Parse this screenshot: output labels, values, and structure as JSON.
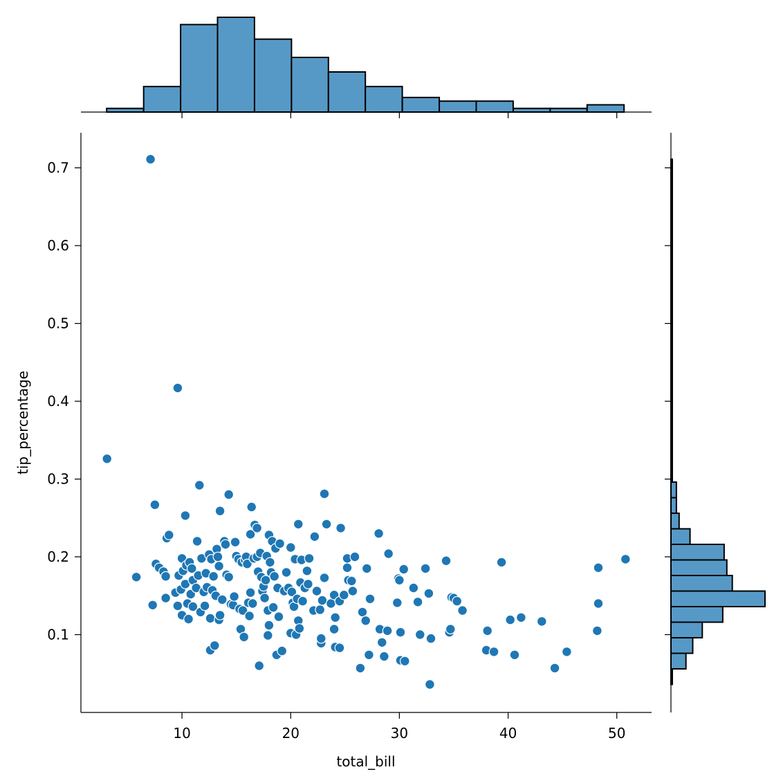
{
  "chart_data": {
    "type": "scatter",
    "title": "",
    "xlabel": "total_bill",
    "ylabel": "tip_percentage",
    "xlim": [
      0.7,
      53.2
    ],
    "ylim": [
      0.0,
      0.745
    ],
    "xticks": [
      10,
      20,
      30,
      40,
      50
    ],
    "xtick_labels": [
      "10",
      "20",
      "30",
      "40",
      "50"
    ],
    "yticks": [
      0.1,
      0.2,
      0.3,
      0.4,
      0.5,
      0.6,
      0.7
    ],
    "ytick_labels": [
      "0.1",
      "0.2",
      "0.3",
      "0.4",
      "0.5",
      "0.6",
      "0.7"
    ],
    "grid": false,
    "legend": "none",
    "colors": {
      "points": "#1f77b4",
      "bars": "#5799c6",
      "edge": "#000000"
    },
    "points": [
      [
        3.1,
        0.326
      ],
      [
        5.8,
        0.174
      ],
      [
        7.1,
        0.711
      ],
      [
        7.3,
        0.138
      ],
      [
        7.5,
        0.267
      ],
      [
        7.6,
        0.191
      ],
      [
        7.9,
        0.186
      ],
      [
        8.3,
        0.181
      ],
      [
        8.5,
        0.175
      ],
      [
        8.5,
        0.147
      ],
      [
        8.6,
        0.224
      ],
      [
        8.8,
        0.228
      ],
      [
        9.6,
        0.417
      ],
      [
        9.4,
        0.154
      ],
      [
        9.6,
        0.137
      ],
      [
        9.7,
        0.176
      ],
      [
        9.9,
        0.158
      ],
      [
        10.0,
        0.198
      ],
      [
        10.0,
        0.125
      ],
      [
        10.1,
        0.182
      ],
      [
        10.3,
        0.253
      ],
      [
        10.3,
        0.165
      ],
      [
        10.4,
        0.189
      ],
      [
        10.5,
        0.14
      ],
      [
        10.6,
        0.12
      ],
      [
        10.7,
        0.193
      ],
      [
        10.8,
        0.152
      ],
      [
        10.9,
        0.185
      ],
      [
        11.0,
        0.17
      ],
      [
        11.0,
        0.136
      ],
      [
        11.3,
        0.16
      ],
      [
        11.4,
        0.22
      ],
      [
        11.5,
        0.176
      ],
      [
        11.6,
        0.292
      ],
      [
        11.7,
        0.129
      ],
      [
        11.8,
        0.198
      ],
      [
        12.0,
        0.155
      ],
      [
        12.1,
        0.137
      ],
      [
        12.2,
        0.179
      ],
      [
        12.3,
        0.161
      ],
      [
        12.5,
        0.203
      ],
      [
        12.6,
        0.121
      ],
      [
        12.6,
        0.08
      ],
      [
        12.7,
        0.197
      ],
      [
        12.8,
        0.157
      ],
      [
        12.9,
        0.175
      ],
      [
        13.0,
        0.086
      ],
      [
        13.1,
        0.15
      ],
      [
        13.2,
        0.21
      ],
      [
        13.3,
        0.2
      ],
      [
        13.4,
        0.188
      ],
      [
        13.4,
        0.119
      ],
      [
        13.5,
        0.259
      ],
      [
        13.5,
        0.125
      ],
      [
        13.7,
        0.145
      ],
      [
        13.9,
        0.22
      ],
      [
        14.0,
        0.216
      ],
      [
        14.1,
        0.177
      ],
      [
        14.3,
        0.28
      ],
      [
        14.3,
        0.174
      ],
      [
        14.5,
        0.139
      ],
      [
        14.7,
        0.138
      ],
      [
        14.8,
        0.149
      ],
      [
        14.9,
        0.219
      ],
      [
        15.0,
        0.201
      ],
      [
        15.2,
        0.197
      ],
      [
        15.3,
        0.133
      ],
      [
        15.4,
        0.107
      ],
      [
        15.5,
        0.193
      ],
      [
        15.6,
        0.131
      ],
      [
        15.7,
        0.097
      ],
      [
        15.8,
        0.196
      ],
      [
        15.9,
        0.2
      ],
      [
        16.0,
        0.191
      ],
      [
        16.1,
        0.141
      ],
      [
        16.2,
        0.124
      ],
      [
        16.3,
        0.154
      ],
      [
        16.3,
        0.229
      ],
      [
        16.4,
        0.264
      ],
      [
        16.5,
        0.14
      ],
      [
        16.6,
        0.198
      ],
      [
        16.7,
        0.241
      ],
      [
        16.9,
        0.237
      ],
      [
        16.9,
        0.2
      ],
      [
        17.0,
        0.181
      ],
      [
        17.1,
        0.06
      ],
      [
        17.2,
        0.205
      ],
      [
        17.3,
        0.174
      ],
      [
        17.4,
        0.156
      ],
      [
        17.5,
        0.162
      ],
      [
        17.6,
        0.147
      ],
      [
        17.7,
        0.17
      ],
      [
        17.8,
        0.201
      ],
      [
        17.9,
        0.131
      ],
      [
        17.9,
        0.099
      ],
      [
        18.0,
        0.228
      ],
      [
        18.0,
        0.112
      ],
      [
        18.1,
        0.193
      ],
      [
        18.2,
        0.18
      ],
      [
        18.3,
        0.22
      ],
      [
        18.4,
        0.135
      ],
      [
        18.5,
        0.175
      ],
      [
        18.6,
        0.211
      ],
      [
        18.7,
        0.074
      ],
      [
        18.8,
        0.16
      ],
      [
        18.9,
        0.123
      ],
      [
        19.0,
        0.217
      ],
      [
        19.2,
        0.079
      ],
      [
        19.4,
        0.156
      ],
      [
        19.6,
        0.18
      ],
      [
        19.8,
        0.16
      ],
      [
        20.0,
        0.102
      ],
      [
        20.0,
        0.212
      ],
      [
        20.1,
        0.155
      ],
      [
        20.2,
        0.141
      ],
      [
        20.3,
        0.136
      ],
      [
        20.4,
        0.197
      ],
      [
        20.5,
        0.1
      ],
      [
        20.6,
        0.146
      ],
      [
        20.7,
        0.242
      ],
      [
        20.7,
        0.118
      ],
      [
        20.8,
        0.108
      ],
      [
        20.9,
        0.167
      ],
      [
        21.0,
        0.196
      ],
      [
        21.1,
        0.143
      ],
      [
        21.3,
        0.16
      ],
      [
        21.5,
        0.182
      ],
      [
        21.6,
        0.165
      ],
      [
        21.7,
        0.198
      ],
      [
        22.1,
        0.131
      ],
      [
        22.2,
        0.226
      ],
      [
        22.4,
        0.156
      ],
      [
        22.7,
        0.132
      ],
      [
        22.8,
        0.089
      ],
      [
        22.8,
        0.095
      ],
      [
        22.9,
        0.144
      ],
      [
        23.1,
        0.173
      ],
      [
        23.1,
        0.281
      ],
      [
        23.3,
        0.242
      ],
      [
        23.7,
        0.14
      ],
      [
        24.0,
        0.107
      ],
      [
        24.0,
        0.151
      ],
      [
        24.1,
        0.122
      ],
      [
        24.1,
        0.084
      ],
      [
        24.5,
        0.083
      ],
      [
        24.5,
        0.143
      ],
      [
        24.6,
        0.237
      ],
      [
        24.9,
        0.151
      ],
      [
        25.2,
        0.198
      ],
      [
        25.2,
        0.186
      ],
      [
        25.3,
        0.17
      ],
      [
        25.6,
        0.169
      ],
      [
        25.7,
        0.156
      ],
      [
        25.9,
        0.2
      ],
      [
        26.4,
        0.057
      ],
      [
        26.6,
        0.129
      ],
      [
        26.9,
        0.118
      ],
      [
        27.0,
        0.185
      ],
      [
        27.2,
        0.074
      ],
      [
        27.3,
        0.146
      ],
      [
        28.1,
        0.23
      ],
      [
        28.2,
        0.107
      ],
      [
        28.4,
        0.09
      ],
      [
        28.6,
        0.072
      ],
      [
        28.9,
        0.105
      ],
      [
        29.0,
        0.204
      ],
      [
        29.8,
        0.141
      ],
      [
        29.9,
        0.172
      ],
      [
        30.0,
        0.17
      ],
      [
        30.1,
        0.103
      ],
      [
        30.1,
        0.067
      ],
      [
        30.4,
        0.184
      ],
      [
        30.5,
        0.066
      ],
      [
        31.3,
        0.16
      ],
      [
        31.7,
        0.142
      ],
      [
        31.9,
        0.1
      ],
      [
        32.4,
        0.185
      ],
      [
        32.7,
        0.153
      ],
      [
        32.8,
        0.036
      ],
      [
        32.9,
        0.095
      ],
      [
        34.3,
        0.195
      ],
      [
        34.6,
        0.103
      ],
      [
        34.7,
        0.107
      ],
      [
        34.8,
        0.148
      ],
      [
        35.0,
        0.147
      ],
      [
        35.3,
        0.143
      ],
      [
        35.8,
        0.131
      ],
      [
        38.0,
        0.08
      ],
      [
        38.1,
        0.105
      ],
      [
        38.7,
        0.078
      ],
      [
        39.4,
        0.193
      ],
      [
        40.2,
        0.119
      ],
      [
        40.6,
        0.074
      ],
      [
        41.2,
        0.122
      ],
      [
        43.1,
        0.117
      ],
      [
        44.3,
        0.057
      ],
      [
        45.4,
        0.078
      ],
      [
        48.2,
        0.105
      ],
      [
        48.3,
        0.14
      ],
      [
        48.3,
        0.186
      ],
      [
        50.8,
        0.197
      ]
    ],
    "x_histogram": {
      "bin_edges": [
        3.07,
        6.47,
        9.87,
        13.27,
        16.67,
        20.07,
        23.47,
        26.87,
        30.27,
        33.67,
        37.07,
        40.47,
        43.87,
        47.27,
        50.67
      ],
      "counts": [
        1,
        7,
        24,
        26,
        20,
        15,
        11,
        7,
        4,
        3,
        3,
        1,
        1,
        2
      ]
    },
    "y_histogram": {
      "bin_edges": [
        0.036,
        0.056,
        0.076,
        0.096,
        0.116,
        0.136,
        0.156,
        0.176,
        0.196,
        0.216,
        0.236,
        0.256,
        0.276,
        0.296,
        0.401,
        0.421,
        0.691,
        0.711
      ],
      "counts": [
        1,
        11,
        16,
        23,
        38,
        69,
        45,
        41,
        39,
        14,
        6,
        4,
        4,
        1,
        1,
        1,
        1
      ]
    }
  }
}
